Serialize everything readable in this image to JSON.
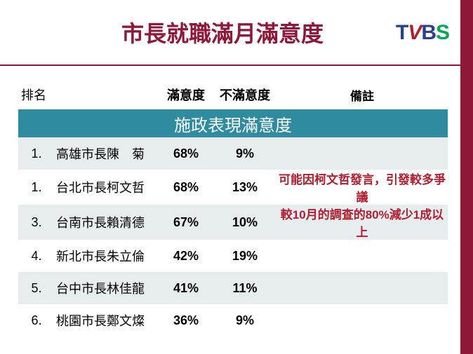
{
  "title": {
    "text": "市長就職滿月滿意度",
    "color": "#8f1839"
  },
  "logo": {
    "t": "T",
    "v": "V",
    "b": "B",
    "s": "S"
  },
  "band": "施政表現滿意度",
  "headers": {
    "rank": "排名",
    "name": "",
    "sat": "滿意度",
    "unsat": "不滿意度",
    "note": "備註"
  },
  "note_color": "#b31e2f",
  "rows": [
    {
      "rank": "1.",
      "name": "高雄市長陳　菊",
      "sat": "68%",
      "unsat": "9%",
      "note": ""
    },
    {
      "rank": "1.",
      "name": "台北市長柯文哲",
      "sat": "68%",
      "unsat": "13%",
      "note": "可能因柯文哲發言，引發較多爭議"
    },
    {
      "rank": "3.",
      "name": "台南市長賴清德",
      "sat": "67%",
      "unsat": "10%",
      "note": "較10月的調查的80%減少1成以上"
    },
    {
      "rank": "4.",
      "name": "新北市長朱立倫",
      "sat": "42%",
      "unsat": "19%",
      "note": ""
    },
    {
      "rank": "5.",
      "name": "台中市長林佳龍",
      "sat": "41%",
      "unsat": "11%",
      "note": ""
    },
    {
      "rank": "6.",
      "name": "桃園市長鄭文燦",
      "sat": "36%",
      "unsat": "9%",
      "note": ""
    }
  ],
  "colors": {
    "brand_stripe": "#8f1839",
    "band_bg": "#2f8ba0",
    "row_alt_bg": "#e7edef",
    "background": "#ffffff"
  }
}
